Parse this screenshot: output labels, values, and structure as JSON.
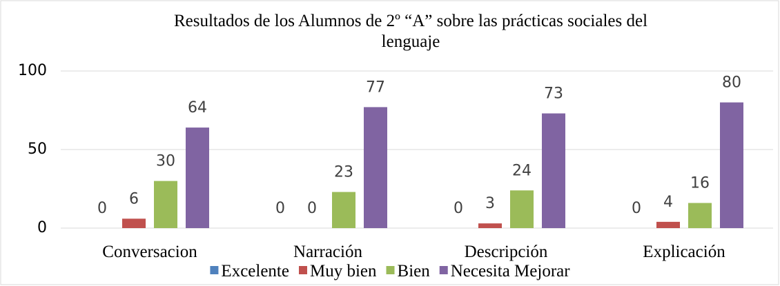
{
  "chart_data": {
    "type": "bar",
    "title": "Resultados de los Alumnos de 2º “A” sobre las prácticas sociales del lenguaje",
    "categories": [
      "Conversacion",
      "Narración",
      "Descripción",
      "Explicación"
    ],
    "series": [
      {
        "name": "Excelente",
        "color": "#4f81bd",
        "values": [
          0,
          0,
          0,
          0
        ]
      },
      {
        "name": "Muy bien",
        "color": "#c0504d",
        "values": [
          6,
          0,
          3,
          4
        ]
      },
      {
        "name": "Bien",
        "color": "#9bbb59",
        "values": [
          30,
          23,
          24,
          16
        ]
      },
      {
        "name": "Necesita Mejorar",
        "color": "#8064a2",
        "values": [
          64,
          77,
          73,
          80
        ]
      }
    ],
    "ylim": [
      0,
      100
    ],
    "yticks": [
      0,
      50,
      100
    ],
    "grid": true,
    "legend": "bottom"
  }
}
